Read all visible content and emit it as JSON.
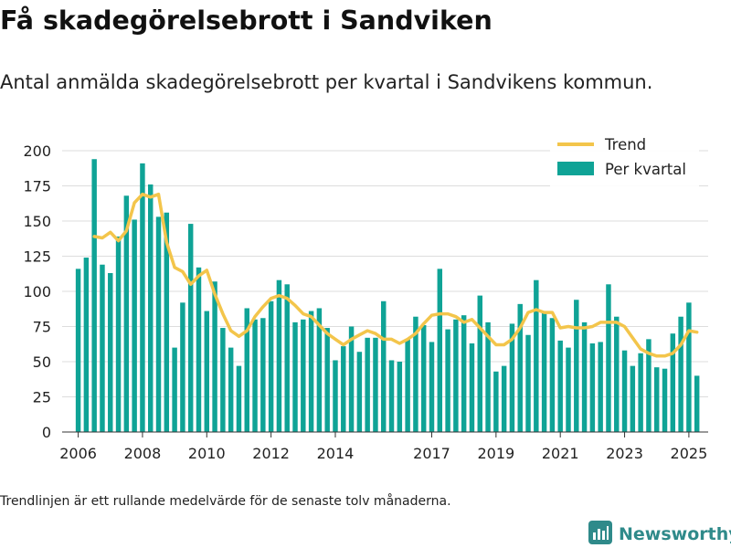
{
  "header": {
    "title": "Få skadegörelsebrott i Sandviken",
    "subtitle": "Antal anmälda skadegörelsebrott per kvartal i Sandvikens kommun."
  },
  "footer": {
    "note": "Trendlinjen är ett rullande medelvärde för de senaste tolv månaderna.",
    "brand": "Newsworthy",
    "brand_icon": "bar-chart-logo-icon"
  },
  "colors": {
    "bars": "#0fa396",
    "trend": "#f3c54b",
    "grid": "#dddddd",
    "axis": "#333333",
    "brand": "#2f8a8a"
  },
  "chart_data": {
    "type": "bar",
    "title": "",
    "xlabel": "",
    "ylabel": "",
    "ylim": [
      0,
      200
    ],
    "yticks": [
      0,
      25,
      50,
      75,
      100,
      125,
      150,
      175,
      200
    ],
    "xlim": [
      2005.5,
      2025.6
    ],
    "xticks": [
      "2006",
      "2008",
      "2010",
      "2012",
      "2014",
      "2017",
      "2019",
      "2021",
      "2023",
      "2025"
    ],
    "grid": true,
    "legend_position": "top-right",
    "start_quarter": "2006-Q1",
    "series": [
      {
        "name": "Per kvartal",
        "type": "bar",
        "values": [
          116,
          124,
          194,
          119,
          113,
          139,
          168,
          151,
          191,
          176,
          153,
          156,
          60,
          92,
          148,
          117,
          86,
          107,
          74,
          60,
          47,
          88,
          80,
          81,
          93,
          108,
          105,
          78,
          80,
          86,
          88,
          74,
          51,
          61,
          75,
          57,
          67,
          67,
          93,
          51,
          50,
          66,
          82,
          76,
          64,
          116,
          73,
          80,
          83,
          63,
          97,
          78,
          43,
          47,
          77,
          91,
          69,
          108,
          85,
          81,
          65,
          60,
          94,
          78,
          63,
          64,
          105,
          82,
          58,
          47,
          56,
          66,
          46,
          45,
          70,
          82,
          92,
          40
        ]
      },
      {
        "name": "Trend",
        "type": "line",
        "start_quarter": "2006-Q3",
        "values": [
          139,
          138,
          142,
          136,
          143,
          163,
          169,
          167,
          169,
          135,
          117,
          114,
          105,
          111,
          115,
          98,
          84,
          72,
          68,
          72,
          82,
          89,
          95,
          97,
          95,
          90,
          84,
          82,
          76,
          70,
          66,
          62,
          66,
          69,
          72,
          70,
          66,
          66,
          63,
          66,
          70,
          77,
          83,
          84,
          84,
          82,
          78,
          80,
          74,
          68,
          62,
          62,
          66,
          74,
          85,
          87,
          85,
          85,
          74,
          75,
          74,
          74,
          75,
          78,
          78,
          78,
          75,
          67,
          59,
          56,
          54,
          54,
          56,
          62,
          72,
          71
        ]
      }
    ]
  }
}
